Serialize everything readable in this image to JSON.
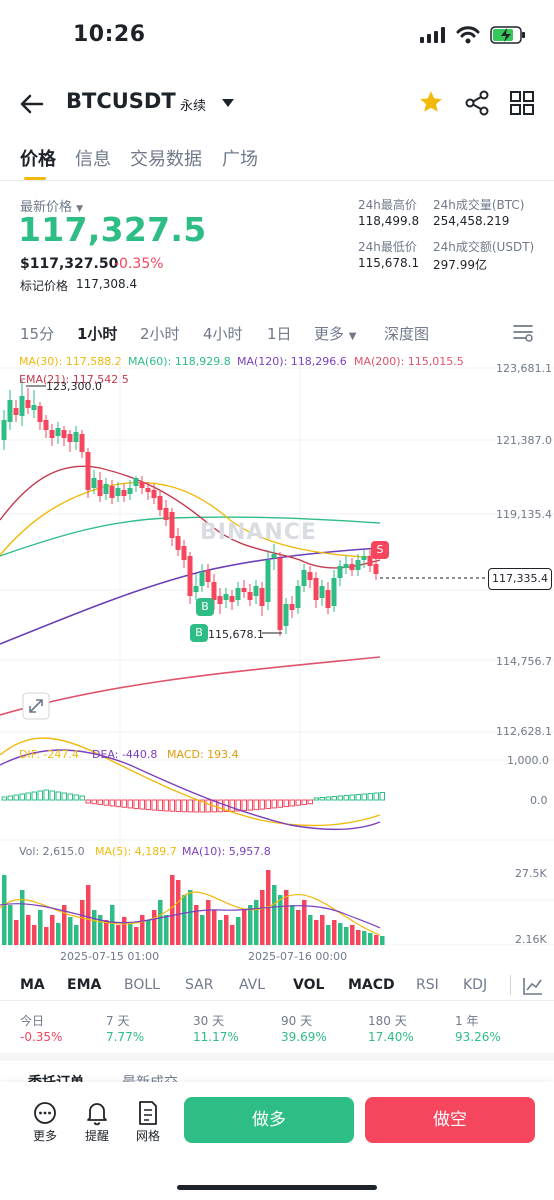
{
  "status": {
    "time": "10:26"
  },
  "header": {
    "symbol": "BTCUSDT",
    "contract_type": "永续"
  },
  "page_tabs": [
    "价格",
    "信息",
    "交易数据",
    "广场"
  ],
  "price": {
    "label": "最新价格",
    "last": "117,327.5",
    "usd": "$117,327.50",
    "change": "-0.35%",
    "mark_label": "标记价格",
    "mark_value": "117,308.4"
  },
  "stats": {
    "high_label": "24h最高价",
    "high": "118,499.8",
    "low_label": "24h最低价",
    "low": "115,678.1",
    "vol_btc_label": "24h成交量(BTC)",
    "vol_btc": "254,458.219",
    "vol_usdt_label": "24h成交额(USDT)",
    "vol_usdt": "297.99亿"
  },
  "intervals": [
    "15分",
    "1小时",
    "2小时",
    "4小时",
    "1日",
    "更多",
    "深度图"
  ],
  "ma_legend": {
    "ma30": "MA(30): 117,588.2",
    "ma60": "MA(60): 118,929.8",
    "ma120": "MA(120): 118,296.6",
    "ma200": "MA(200): 115,015.5",
    "ema21": "EMA(21): 117,542.5"
  },
  "price_axis": [
    "123,681.1",
    "121,387.0",
    "119,135.4",
    "117,335.4",
    "114,756.7",
    "112,628.1"
  ],
  "chart_annotations": {
    "high": "123,300.0",
    "low": "115,678.1",
    "buy": "B",
    "sell": "S",
    "watermark": "BINANCE"
  },
  "macd": {
    "dif": "DIF: -247.4",
    "dea": "DEA: -440.8",
    "macd": "MACD: 193.4",
    "axis_top": "1,000.0",
    "axis_zero": "0.0"
  },
  "vol": {
    "vol": "Vol: 2,615.0",
    "ma5": "MA(5): 4,189.7",
    "ma10": "MA(10): 5,957.8",
    "axis_top": "27.5K",
    "axis_bottom": "2.16K"
  },
  "time_axis": [
    "2025-07-15 01:00",
    "2025-07-16 00:00"
  ],
  "indicators": [
    "MA",
    "EMA",
    "BOLL",
    "SAR",
    "AVL",
    "VOL",
    "MACD",
    "RSI",
    "KDJ"
  ],
  "performance": [
    {
      "label": "今日",
      "value": "-0.35%"
    },
    {
      "label": "7 天",
      "value": "7.77%"
    },
    {
      "label": "30 天",
      "value": "11.17%"
    },
    {
      "label": "90 天",
      "value": "39.69%"
    },
    {
      "label": "180 天",
      "value": "17.40%"
    },
    {
      "label": "1 年",
      "value": "93.26%"
    }
  ],
  "bottom_tabs_peek": [
    "委托订单",
    "最新成交"
  ],
  "bottom_bar": {
    "more": "更多",
    "alert": "提醒",
    "grid": "网格",
    "long": "做多",
    "short": "做空"
  },
  "colors": {
    "up": "#2ebd85",
    "down": "#f6465d",
    "accent": "#f0b90b"
  }
}
